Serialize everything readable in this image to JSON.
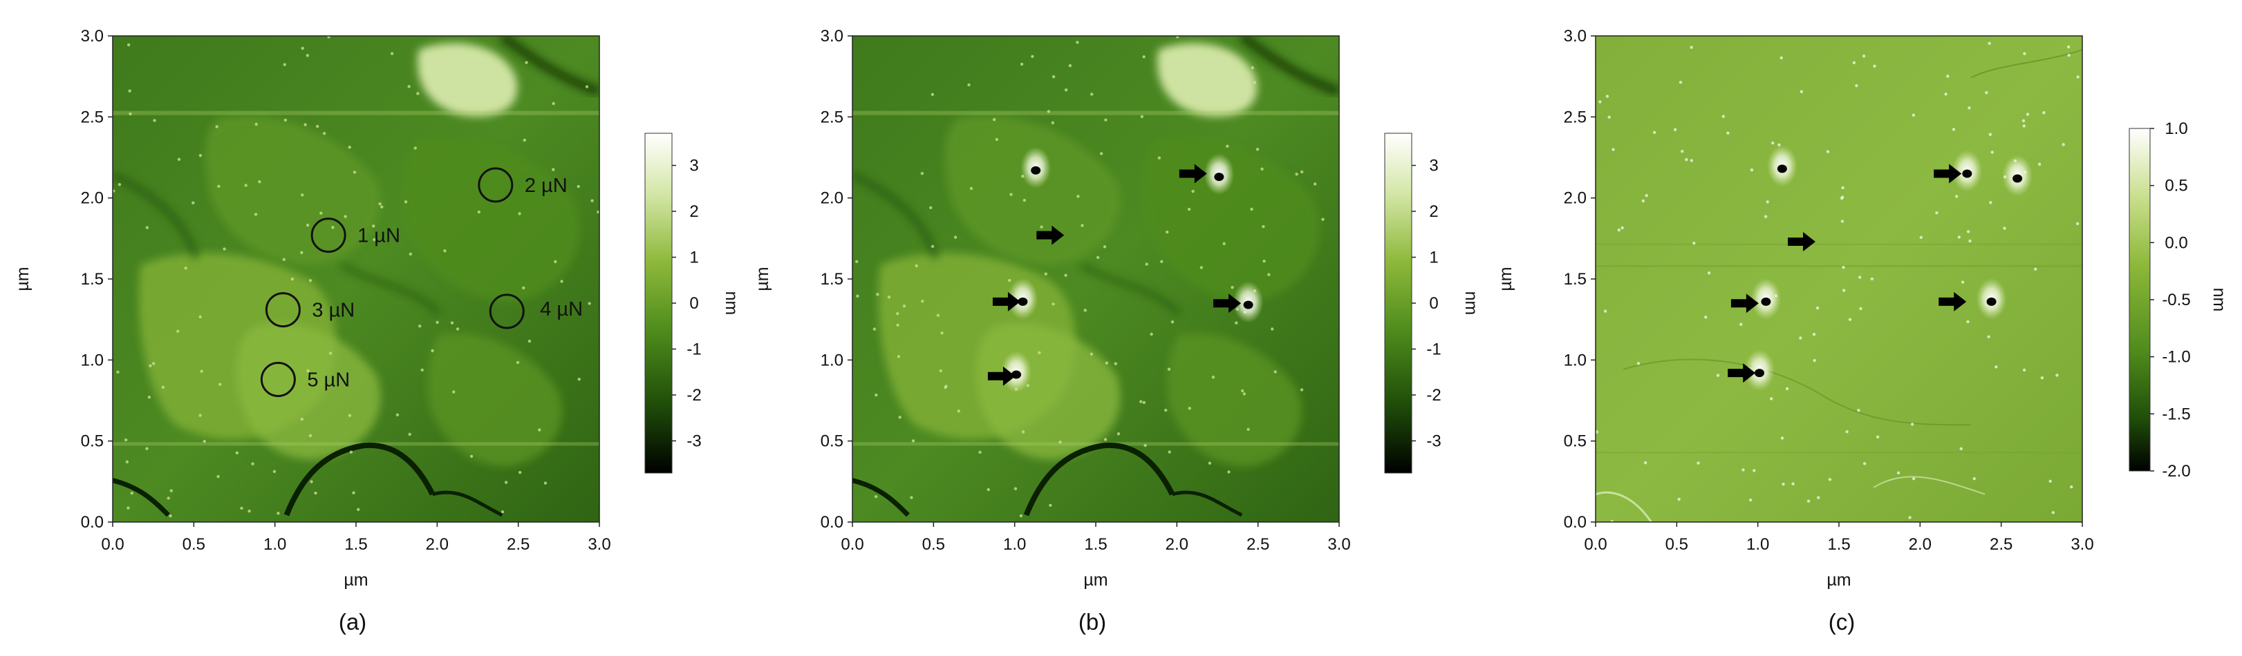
{
  "panels": [
    {
      "caption": "(a)",
      "xlabel": "µm",
      "ylabel": "µm",
      "xticks": [
        "0.0",
        "0.5",
        "1.0",
        "1.5",
        "2.0",
        "2.5",
        "3.0"
      ],
      "yticks": [
        "0.0",
        "0.5",
        "1.0",
        "1.5",
        "2.0",
        "2.5",
        "3.0"
      ],
      "colorbar": {
        "label": "nm",
        "ticks": [
          "3",
          "2",
          "1",
          "0",
          "-1",
          "-2",
          "-3"
        ]
      },
      "annotations": [
        {
          "label": "1 µN"
        },
        {
          "label": "2 µN"
        },
        {
          "label": "3 µN"
        },
        {
          "label": "4 µN"
        },
        {
          "label": "5 µN"
        }
      ]
    },
    {
      "caption": "(b)",
      "xlabel": "µm",
      "ylabel": "µm",
      "xticks": [
        "0.0",
        "0.5",
        "1.0",
        "1.5",
        "2.0",
        "2.5",
        "3.0"
      ],
      "yticks": [
        "0.0",
        "0.5",
        "1.0",
        "1.5",
        "2.0",
        "2.5",
        "3.0"
      ],
      "colorbar": {
        "label": "nm",
        "ticks": [
          "3",
          "2",
          "1",
          "0",
          "-1",
          "-2",
          "-3"
        ]
      }
    },
    {
      "caption": "(c)",
      "xlabel": "µm",
      "ylabel": "µm",
      "xticks": [
        "0.0",
        "0.5",
        "1.0",
        "1.5",
        "2.0",
        "2.5",
        "3.0"
      ],
      "yticks": [
        "0.0",
        "0.5",
        "1.0",
        "1.5",
        "2.0",
        "2.5",
        "3.0"
      ],
      "colorbar": {
        "label": "nm",
        "ticks": [
          "1.0",
          "0.5",
          "0.0",
          "-0.5",
          "-1.0",
          "-1.5",
          "-2.0"
        ]
      }
    }
  ],
  "chart_data": [
    {
      "type": "heatmap",
      "title": "",
      "xlabel": "µm",
      "ylabel": "µm",
      "xlim": [
        0,
        3
      ],
      "ylim": [
        0,
        3
      ],
      "colorbar": {
        "label": "nm",
        "range": [
          -3.7,
          3.7
        ],
        "ticks": [
          3,
          2,
          1,
          0,
          -1,
          -2,
          -3
        ]
      },
      "colormap": [
        "#000000",
        "#1f4d09",
        "#4f8c1c",
        "#8db83a",
        "#d3e6a6",
        "#ffffff"
      ],
      "indents": [
        {
          "x": 1.33,
          "y": 1.77,
          "label": "1 µN"
        },
        {
          "x": 2.36,
          "y": 2.08,
          "label": "2 µN"
        },
        {
          "x": 1.05,
          "y": 1.31,
          "label": "3 µN"
        },
        {
          "x": 2.43,
          "y": 1.3,
          "label": "4 µN"
        },
        {
          "x": 1.02,
          "y": 0.88,
          "label": "5 µN"
        }
      ]
    },
    {
      "type": "heatmap",
      "title": "",
      "xlabel": "µm",
      "ylabel": "µm",
      "xlim": [
        0,
        3
      ],
      "ylim": [
        0,
        3
      ],
      "colorbar": {
        "label": "nm",
        "range": [
          -3.7,
          3.7
        ],
        "ticks": [
          3,
          2,
          1,
          0,
          -1,
          -2,
          -3
        ]
      },
      "colormap": [
        "#000000",
        "#1f4d09",
        "#4f8c1c",
        "#8db83a",
        "#d3e6a6",
        "#ffffff"
      ],
      "indents": [
        {
          "x": 1.13,
          "y": 2.17
        },
        {
          "x": 2.26,
          "y": 2.13
        },
        {
          "x": 1.05,
          "y": 1.36
        },
        {
          "x": 2.44,
          "y": 1.34
        },
        {
          "x": 1.01,
          "y": 0.91
        }
      ],
      "arrows": [
        {
          "x": 2.1,
          "y": 2.15
        },
        {
          "x": 1.22,
          "y": 1.77
        },
        {
          "x": 0.95,
          "y": 1.36
        },
        {
          "x": 2.31,
          "y": 1.35
        },
        {
          "x": 0.92,
          "y": 0.9
        }
      ]
    },
    {
      "type": "heatmap",
      "title": "",
      "xlabel": "µm",
      "ylabel": "µm",
      "xlim": [
        0,
        3
      ],
      "ylim": [
        0,
        3
      ],
      "colorbar": {
        "label": "nm",
        "range": [
          -2.0,
          1.0
        ],
        "ticks": [
          1.0,
          0.5,
          0.0,
          -0.5,
          -1.0,
          -1.5,
          -2.0
        ]
      },
      "colormap": [
        "#000000",
        "#1f4d09",
        "#4f8c1c",
        "#8db83a",
        "#d3e6a6",
        "#ffffff"
      ],
      "indents": [
        {
          "x": 1.15,
          "y": 2.18
        },
        {
          "x": 2.29,
          "y": 2.15
        },
        {
          "x": 2.6,
          "y": 2.12
        },
        {
          "x": 1.05,
          "y": 1.36
        },
        {
          "x": 2.44,
          "y": 1.36
        },
        {
          "x": 1.01,
          "y": 0.92
        }
      ],
      "arrows": [
        {
          "x": 2.17,
          "y": 2.15
        },
        {
          "x": 1.27,
          "y": 1.73
        },
        {
          "x": 0.92,
          "y": 1.35
        },
        {
          "x": 2.2,
          "y": 1.36
        },
        {
          "x": 0.9,
          "y": 0.92
        }
      ]
    }
  ]
}
